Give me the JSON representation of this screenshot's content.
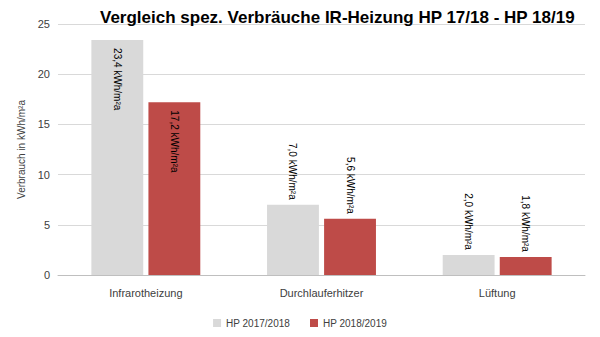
{
  "chart_data": {
    "type": "bar",
    "title": "Vergleich spez. Verbräuche IR-Heizung HP 17/18 - HP 18/19",
    "y_label": "Verbrauch in kWh/m²a",
    "categories": [
      "Infrarotheizung",
      "Durchlauferhitzer",
      "Lüftung"
    ],
    "series": [
      {
        "name": "HP 2017/2018",
        "color": "#d9d9d9",
        "values": [
          23.4,
          7.0,
          2.0
        ],
        "value_labels": [
          "23,4 kWh/m²a",
          "7,0 kWh/m²a",
          "2,0 kWh/m²a"
        ]
      },
      {
        "name": "HP 2018/2019",
        "color": "#be4b48",
        "values": [
          17.2,
          5.6,
          1.8
        ],
        "value_labels": [
          "17,2 kWh/m²a",
          "5,6 kWh/m²a",
          "1,8 kWh/m²a"
        ]
      }
    ],
    "ylim": [
      0,
      25
    ],
    "yticks": [
      0,
      5,
      10,
      15,
      20,
      25
    ],
    "grid": true,
    "legend": "bottom",
    "data_labels": true
  }
}
